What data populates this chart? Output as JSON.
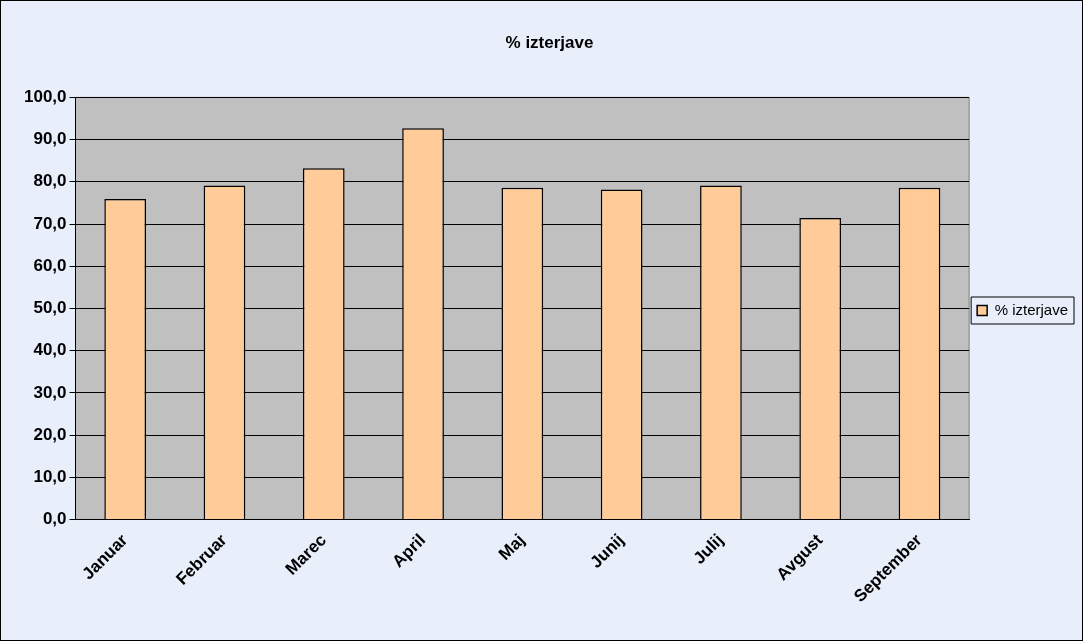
{
  "chart_data": {
    "type": "bar",
    "title": "% izterjave",
    "categories": [
      "Januar",
      "Februar",
      "Marec",
      "April",
      "Maj",
      "Junij",
      "Julij",
      "Avgust",
      "September"
    ],
    "series": [
      {
        "name": "% izterjave",
        "color": "#ffcc99",
        "values": [
          75.9,
          79.1,
          83.2,
          92.7,
          78.6,
          78.2,
          79.1,
          71.4,
          78.6
        ]
      }
    ],
    "ylim": [
      0,
      100
    ],
    "yticks": [
      {
        "value": 0,
        "label": "0,0"
      },
      {
        "value": 10,
        "label": "10,0"
      },
      {
        "value": 20,
        "label": "20,0"
      },
      {
        "value": 30,
        "label": "30,0"
      },
      {
        "value": 40,
        "label": "40,0"
      },
      {
        "value": 50,
        "label": "50,0"
      },
      {
        "value": 60,
        "label": "60,0"
      },
      {
        "value": 70,
        "label": "70,0"
      },
      {
        "value": 80,
        "label": "80,0"
      },
      {
        "value": 90,
        "label": "90,0"
      },
      {
        "value": 100,
        "label": "100,0"
      }
    ],
    "grid": "y",
    "legend": "right"
  }
}
